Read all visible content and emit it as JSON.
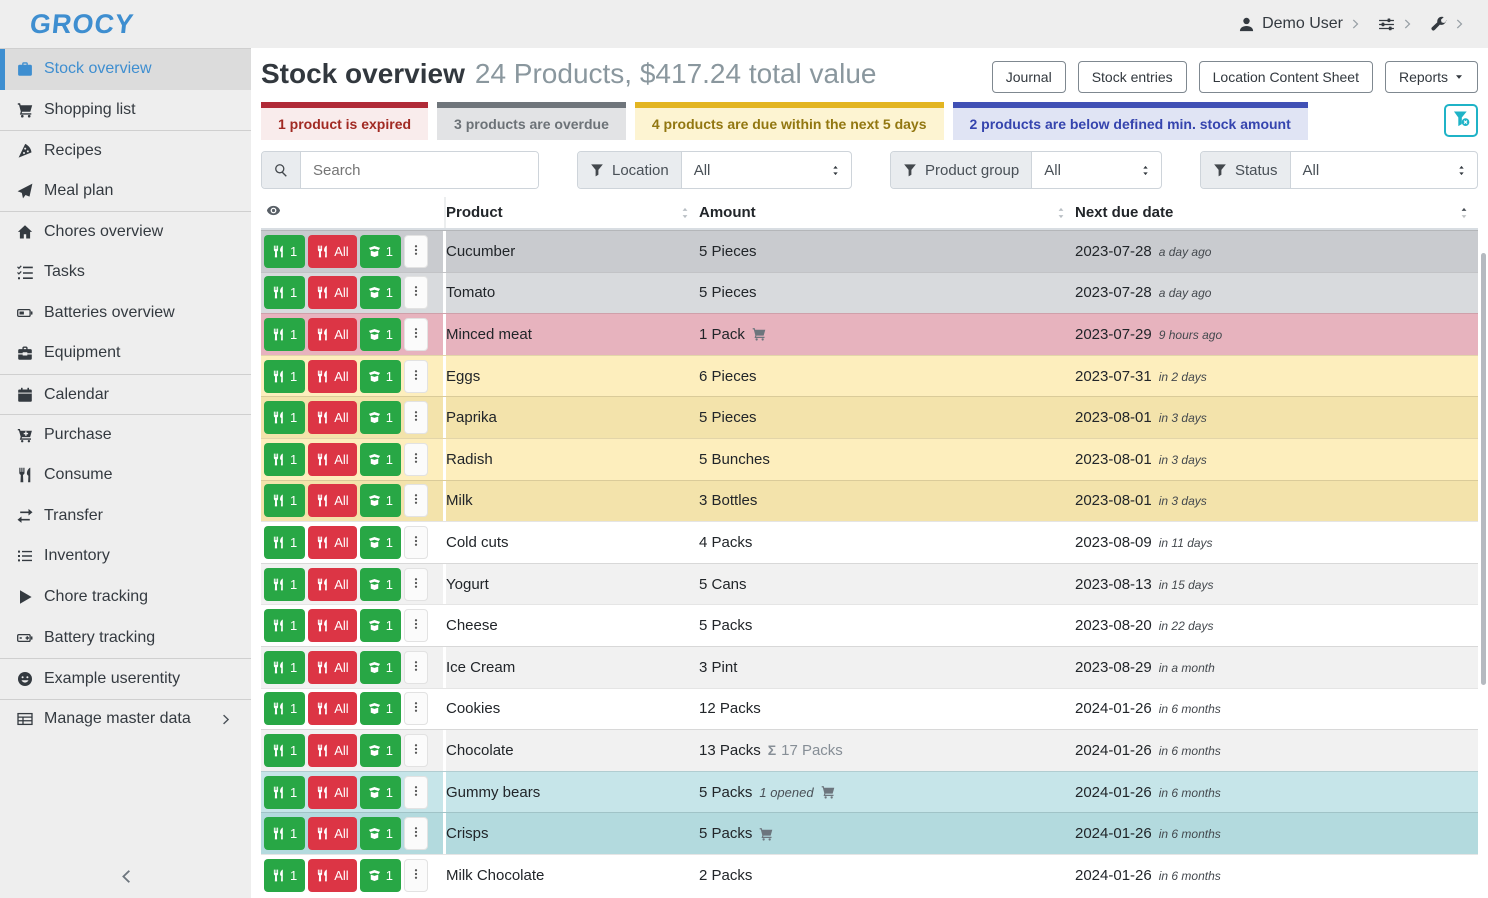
{
  "topbar": {
    "logo": "GROCY",
    "user_label": "Demo User"
  },
  "sidebar": {
    "items": [
      {
        "label": "Stock overview",
        "icon": "briefcase-icon",
        "classes": "active"
      },
      {
        "label": "Shopping list",
        "icon": "shopping-cart-icon",
        "classes": ""
      },
      {
        "label": "Recipes",
        "icon": "pizza-icon",
        "classes": "divided"
      },
      {
        "label": "Meal plan",
        "icon": "paper-plane-icon",
        "classes": ""
      },
      {
        "label": "Chores overview",
        "icon": "home-icon",
        "classes": "divided"
      },
      {
        "label": "Tasks",
        "icon": "tasks-icon",
        "classes": ""
      },
      {
        "label": "Batteries overview",
        "icon": "battery-icon",
        "classes": ""
      },
      {
        "label": "Equipment",
        "icon": "toolbox-icon",
        "classes": ""
      },
      {
        "label": "Calendar",
        "icon": "calendar-icon",
        "classes": "divided"
      },
      {
        "label": "Purchase",
        "icon": "cart-plus-icon",
        "classes": "divided"
      },
      {
        "label": "Consume",
        "icon": "utensils-icon",
        "classes": ""
      },
      {
        "label": "Transfer",
        "icon": "exchange-icon",
        "classes": ""
      },
      {
        "label": "Inventory",
        "icon": "list-icon",
        "classes": ""
      },
      {
        "label": "Chore tracking",
        "icon": "play-icon",
        "classes": ""
      },
      {
        "label": "Battery tracking",
        "icon": "battery-tracking-icon",
        "classes": ""
      },
      {
        "label": "Example userentity",
        "icon": "smile-icon",
        "classes": "divided"
      },
      {
        "label": "Manage master data",
        "icon": "table-icon",
        "classes": "divided",
        "chevron": true,
        "chevron_icon": "chevron-right-icon"
      }
    ]
  },
  "page": {
    "title": "Stock overview",
    "subtitle": "24 Products, $417.24 total value",
    "toolbar": [
      {
        "label": "Journal"
      },
      {
        "label": "Stock entries"
      },
      {
        "label": "Location Content Sheet"
      },
      {
        "label": "Reports"
      }
    ],
    "banners": [
      {
        "text": "1 product is expired"
      },
      {
        "text": "3 products are overdue"
      },
      {
        "text": "4 products are due within the next 5 days"
      },
      {
        "text": "2 products are below defined min. stock amount"
      }
    ],
    "filters": {
      "search_placeholder": "Search",
      "location_label": "Location",
      "location_value": "All",
      "product_group_label": "Product group",
      "product_group_value": "All",
      "status_label": "Status",
      "status_value": "All"
    },
    "table": {
      "columns": {
        "product": "Product",
        "amount": "Amount",
        "next_due_date": "Next due date"
      },
      "action_labels": {
        "consume_one": "1",
        "consume_all": "All",
        "open_one": "1"
      },
      "rows": [
        {
          "product": "Cucumber",
          "amount": "5 Pieces",
          "sigma": "",
          "opened": "",
          "cart": false,
          "date": "2023-07-28",
          "relative": "a day ago",
          "row_class": "row-gray-dark"
        },
        {
          "product": "Tomato",
          "amount": "5 Pieces",
          "sigma": "",
          "opened": "",
          "cart": false,
          "date": "2023-07-28",
          "relative": "a day ago",
          "row_class": "row-gray-light"
        },
        {
          "product": "Minced meat",
          "amount": "1 Pack",
          "sigma": "",
          "opened": "",
          "cart": true,
          "date": "2023-07-29",
          "relative": "9 hours ago",
          "row_class": "row-red"
        },
        {
          "product": "Eggs",
          "amount": "6 Pieces",
          "sigma": "",
          "opened": "",
          "cart": false,
          "date": "2023-07-31",
          "relative": "in 2 days",
          "row_class": "row-yellow-light"
        },
        {
          "product": "Paprika",
          "amount": "5 Pieces",
          "sigma": "",
          "opened": "",
          "cart": false,
          "date": "2023-08-01",
          "relative": "in 3 days",
          "row_class": "row-yellow-dark"
        },
        {
          "product": "Radish",
          "amount": "5 Bunches",
          "sigma": "",
          "opened": "",
          "cart": false,
          "date": "2023-08-01",
          "relative": "in 3 days",
          "row_class": "row-yellow-light"
        },
        {
          "product": "Milk",
          "amount": "3 Bottles",
          "sigma": "",
          "opened": "",
          "cart": false,
          "date": "2023-08-01",
          "relative": "in 3 days",
          "row_class": "row-yellow-dark"
        },
        {
          "product": "Cold cuts",
          "amount": "4 Packs",
          "sigma": "",
          "opened": "",
          "cart": false,
          "date": "2023-08-09",
          "relative": "in 11 days",
          "row_class": "row-plain"
        },
        {
          "product": "Yogurt",
          "amount": "5 Cans",
          "sigma": "",
          "opened": "",
          "cart": false,
          "date": "2023-08-13",
          "relative": "in 15 days",
          "row_class": "row-stripe"
        },
        {
          "product": "Cheese",
          "amount": "5 Packs",
          "sigma": "",
          "opened": "",
          "cart": false,
          "date": "2023-08-20",
          "relative": "in 22 days",
          "row_class": "row-plain"
        },
        {
          "product": "Ice Cream",
          "amount": "3 Pint",
          "sigma": "",
          "opened": "",
          "cart": false,
          "date": "2023-08-29",
          "relative": "in a month",
          "row_class": "row-stripe"
        },
        {
          "product": "Cookies",
          "amount": "12 Packs",
          "sigma": "",
          "opened": "",
          "cart": false,
          "date": "2024-01-26",
          "relative": "in 6 months",
          "row_class": "row-plain"
        },
        {
          "product": "Chocolate",
          "amount": "13 Packs",
          "sigma": "17 Packs",
          "opened": "",
          "cart": false,
          "date": "2024-01-26",
          "relative": "in 6 months",
          "row_class": "row-stripe"
        },
        {
          "product": "Gummy bears",
          "amount": "5 Packs",
          "sigma": "",
          "opened": "1 opened",
          "cart": true,
          "date": "2024-01-26",
          "relative": "in 6 months",
          "row_class": "row-blue-light"
        },
        {
          "product": "Crisps",
          "amount": "5 Packs",
          "sigma": "",
          "opened": "",
          "cart": true,
          "date": "2024-01-26",
          "relative": "in 6 months",
          "row_class": "row-blue-dark"
        },
        {
          "product": "Milk Chocolate",
          "amount": "2 Packs",
          "sigma": "",
          "opened": "",
          "cart": false,
          "date": "2024-01-26",
          "relative": "in 6 months",
          "row_class": "row-plain"
        }
      ]
    }
  },
  "colors": {
    "brand_blue": "#3e8ed0",
    "expired_red": "#b02a37",
    "overdue_gray": "#6f757b",
    "due_yellow": "#e3b521",
    "below_min_indigo": "#4050b5",
    "consume_green": "#28a745",
    "consume_all_red": "#dc3545",
    "filter_teal": "#1fb3c7"
  }
}
